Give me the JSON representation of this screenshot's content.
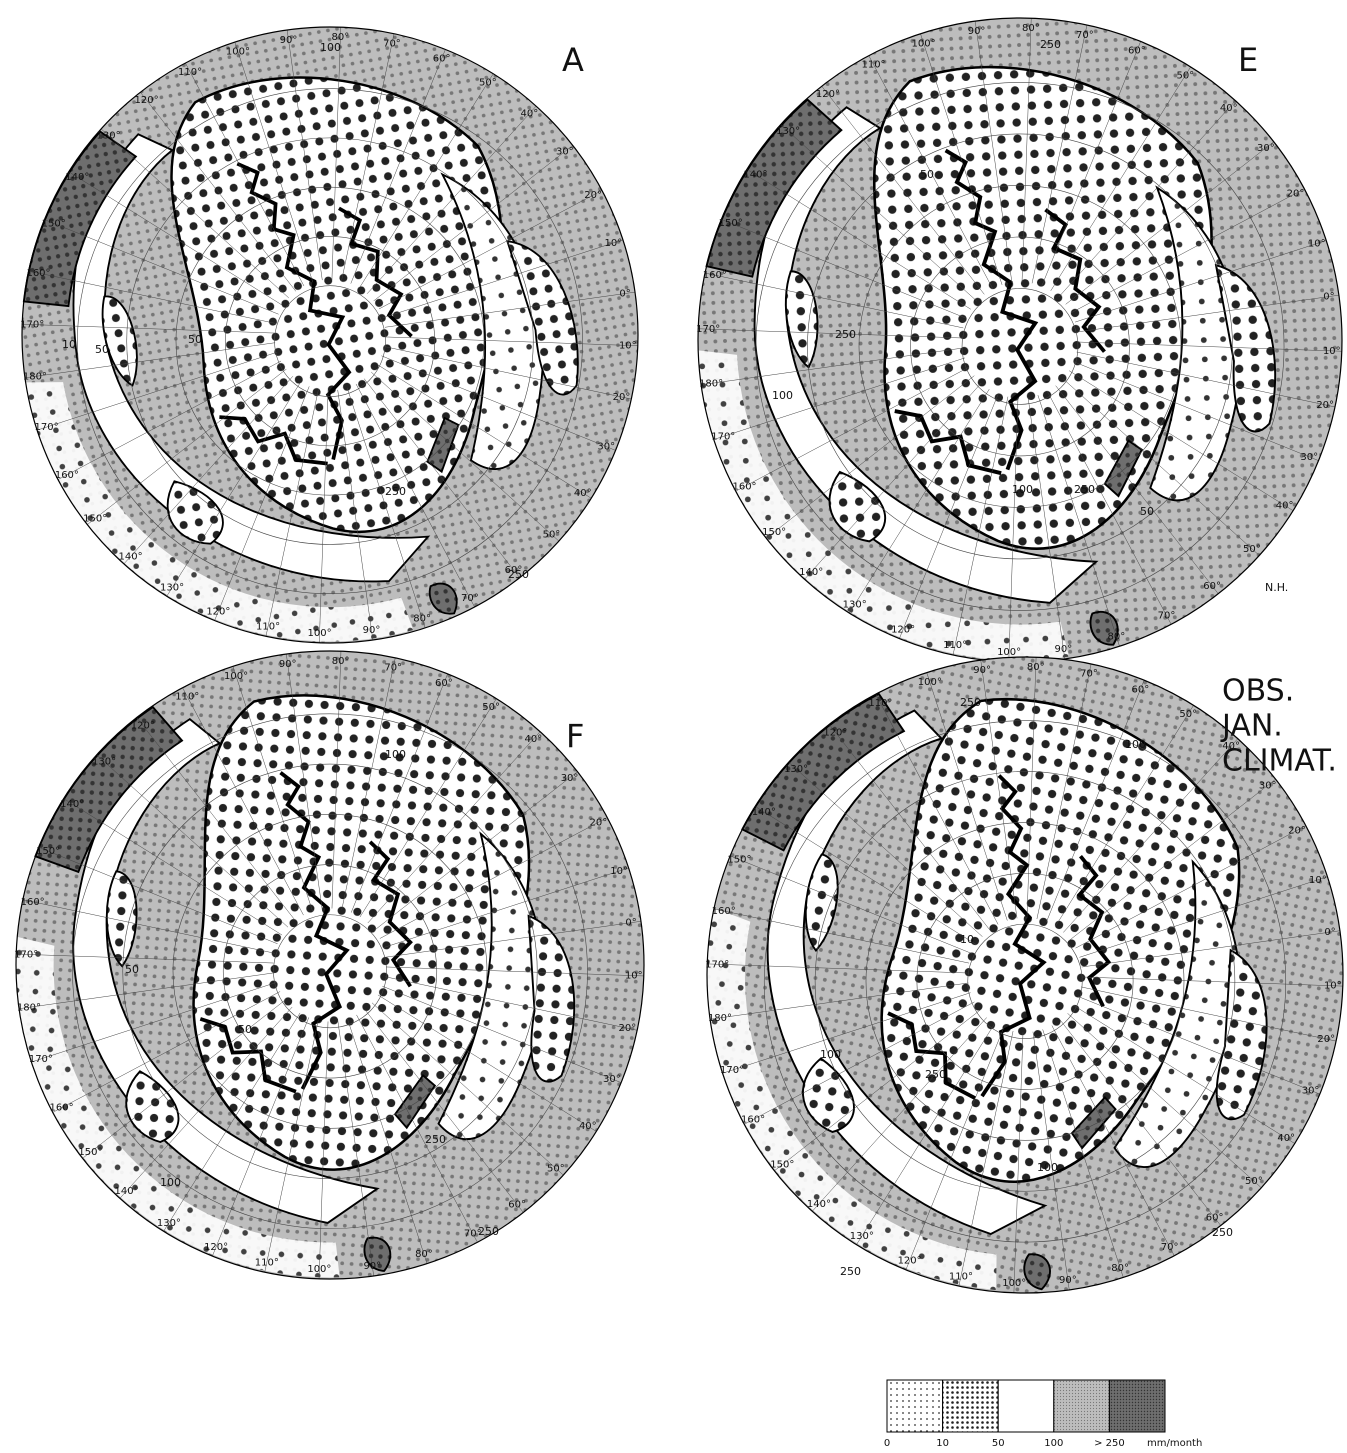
{
  "maps": [
    {
      "label": "A",
      "longitude_labels": [
        "90°",
        "80°",
        "70°",
        "60°",
        "50°",
        "40°",
        "30°",
        "20°",
        "10°",
        "0°",
        "10°",
        "20°",
        "30°",
        "40°",
        "50°",
        "60°",
        "70°",
        "80°",
        "90°",
        "100°",
        "110°",
        "120°",
        "130°",
        "140°",
        "150°",
        "160°",
        "170°",
        "180°",
        "170°",
        "160°",
        "150°",
        "140°",
        "130°",
        "120°",
        "110°",
        "100°"
      ],
      "contour_labels": [
        "100",
        "50",
        "250",
        "10",
        "250",
        "50"
      ]
    },
    {
      "label": "E",
      "note": "N.H.",
      "longitude_labels": [
        "90°",
        "80°",
        "70°",
        "60°",
        "50°",
        "40°",
        "30°",
        "20°",
        "10°",
        "0°",
        "10°",
        "20°",
        "30°",
        "40°",
        "50°",
        "60°",
        "70°",
        "80°",
        "90°",
        "100°",
        "110°",
        "120°",
        "130°",
        "140°",
        "150°",
        "160°",
        "170°",
        "180°",
        "170°",
        "160°",
        "150°",
        "140°",
        "130°",
        "120°",
        "110°",
        "100°"
      ],
      "contour_labels": [
        "250",
        "50",
        "250",
        "100",
        "250",
        "50",
        "100"
      ]
    },
    {
      "label": "F",
      "longitude_labels": [
        "90°",
        "80°",
        "70°",
        "60°",
        "50°",
        "40°",
        "30°",
        "20°",
        "10°",
        "0°",
        "10°",
        "20°",
        "30°",
        "40°",
        "50°",
        "60°",
        "70°",
        "80°",
        "90°",
        "100°",
        "110°",
        "120°",
        "130°",
        "140°",
        "150°",
        "160°",
        "170°",
        "180°",
        "170°",
        "160°",
        "150°",
        "140°",
        "130°",
        "120°",
        "110°",
        "100°"
      ],
      "contour_labels": [
        "100",
        "50",
        "250",
        "250",
        "100",
        "50"
      ]
    },
    {
      "label": [
        "OBS.",
        "JAN.",
        "CLIMAT."
      ],
      "longitude_labels": [
        "90°",
        "80°",
        "70°",
        "60°",
        "50°",
        "40°",
        "30°",
        "20°",
        "10°",
        "0°",
        "10°",
        "20°",
        "30°",
        "40°",
        "50°",
        "60°",
        "70°",
        "80°",
        "90°",
        "100°",
        "110°",
        "120°",
        "130°",
        "140°",
        "150°",
        "160°",
        "170°",
        "180°",
        "170°",
        "160°",
        "150°",
        "140°",
        "130°",
        "120°",
        "110°",
        "100°"
      ],
      "contour_labels": [
        "250",
        "100",
        "100",
        "250",
        "250",
        "100",
        "250",
        "10"
      ]
    }
  ],
  "legend": {
    "classes": [
      "0",
      "10",
      "50",
      "100",
      "> 250"
    ],
    "unit": "mm/month"
  }
}
